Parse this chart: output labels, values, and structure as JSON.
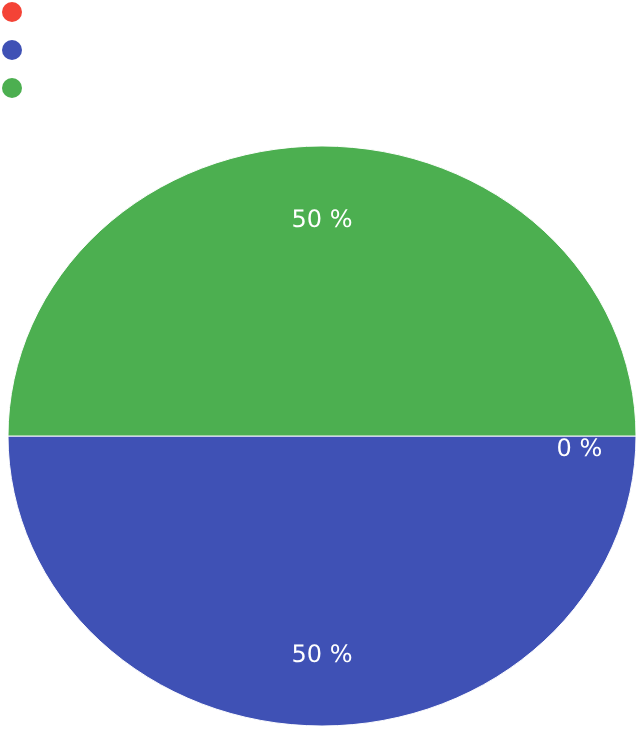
{
  "chart_data": {
    "type": "pie",
    "categories": [
      null,
      null,
      null
    ],
    "values": [
      0,
      50,
      50
    ],
    "colors": [
      "#f44336",
      "#3f51b5",
      "#4caf50"
    ],
    "value_labels": [
      "0 %",
      "50 %",
      "50 %"
    ]
  }
}
